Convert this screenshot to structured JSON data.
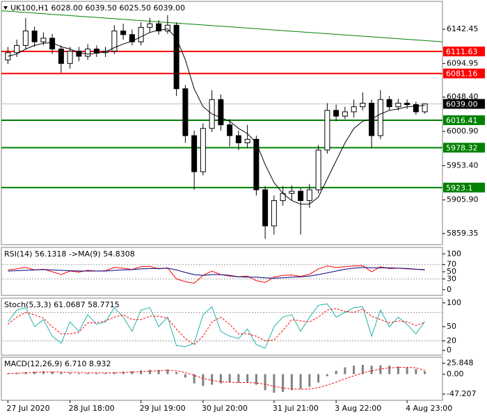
{
  "chart_data": [
    {
      "type": "candlestick",
      "title": "UK100,H1  6028.00 6039.50 6025.50 6039.00",
      "open": [
        6100,
        6110,
        6120,
        6140,
        6125,
        6130,
        6115,
        6095,
        6112,
        6105,
        6115,
        6110,
        6112,
        6140,
        6135,
        6125,
        6145,
        6150,
        6140,
        6148,
        6060,
        5995,
        5945,
        6005,
        6045,
        6010,
        5995,
        5985,
        5990,
        5920,
        5870,
        5905,
        5915,
        5918,
        5905,
        5920,
        5975,
        6030,
        6022,
        6028,
        6035,
        6040,
        5995,
        6045,
        6035,
        6040,
        6038,
        6028
      ],
      "high": [
        6118,
        6128,
        6158,
        6146,
        6138,
        6136,
        6120,
        6118,
        6118,
        6122,
        6120,
        6118,
        6148,
        6150,
        6142,
        6152,
        6158,
        6155,
        6162,
        6152,
        6065,
        6002,
        6012,
        6058,
        6052,
        6018,
        6002,
        6010,
        5995,
        5925,
        5912,
        5925,
        5926,
        5922,
        5928,
        5982,
        6040,
        6038,
        6035,
        6045,
        6055,
        6045,
        6058,
        6050,
        6046,
        6045,
        6042,
        6039.5
      ],
      "low": [
        6094,
        6104,
        6114,
        6118,
        6120,
        6108,
        6082,
        6088,
        6098,
        6100,
        6104,
        6104,
        6108,
        6128,
        6120,
        6120,
        6138,
        6135,
        6136,
        6050,
        5985,
        5920,
        5940,
        6000,
        6002,
        5980,
        5975,
        5978,
        5912,
        5852,
        5858,
        5898,
        5905,
        5858,
        5895,
        5915,
        5970,
        6015,
        6018,
        6020,
        6030,
        5978,
        5990,
        6030,
        6030,
        6032,
        6024,
        6025.5
      ],
      "close": [
        6110,
        6120,
        6140,
        6125,
        6130,
        6115,
        6095,
        6112,
        6105,
        6115,
        6110,
        6112,
        6140,
        6135,
        6125,
        6145,
        6150,
        6140,
        6148,
        6060,
        5995,
        5945,
        6005,
        6045,
        6010,
        5995,
        5985,
        5990,
        5920,
        5870,
        5905,
        5915,
        5918,
        5905,
        5920,
        5975,
        6030,
        6022,
        6028,
        6035,
        6040,
        5995,
        6045,
        6035,
        6040,
        6038,
        6028,
        6039
      ],
      "ma": {
        "color": "#000000",
        "values": [
          6105,
          6108,
          6115,
          6120,
          6123,
          6124,
          6118,
          6115,
          6110,
          6108,
          6109,
          6111,
          6117,
          6122,
          6126,
          6132,
          6138,
          6141,
          6143,
          6130,
          6100,
          6060,
          6035,
          6025,
          6020,
          6015,
          6005,
          5998,
          5985,
          5955,
          5930,
          5915,
          5905,
          5900,
          5900,
          5910,
          5935,
          5960,
          5985,
          6005,
          6015,
          6018,
          6025,
          6030,
          6032,
          6035,
          6036,
          6037
        ]
      },
      "trendline": {
        "color": "#008000",
        "values": [
          6168,
          6125
        ]
      },
      "levels": [
        6111.63,
        6081.16,
        6016.41,
        5978.32,
        5923.1
      ],
      "level_colors": [
        "#ff0000",
        "#ff0000",
        "#008000",
        "#008000",
        "#008000"
      ],
      "current": {
        "value": 6039,
        "label": "6039.00"
      },
      "ylim": [
        5844,
        6181
      ],
      "yticks": [
        6142.45,
        6094.95,
        {
          "value": 6048.4,
          "label": "6048.40"
        },
        {
          "value": 6000.9,
          "label": "6000.90"
        },
        {
          "value": 5953.4,
          "label": "5953.40"
        },
        {
          "value": 5905.9,
          "label": "5905.90"
        },
        5859.35
      ]
    },
    {
      "type": "line",
      "title": "RSI(14) 56.1318 ->MA(9) 54.8308",
      "series": [
        {
          "color": "#ff0000",
          "values": [
            55,
            58,
            62,
            55,
            57,
            50,
            42,
            52,
            49,
            54,
            52,
            53,
            62,
            60,
            56,
            64,
            65,
            58,
            61,
            30,
            22,
            18,
            40,
            52,
            42,
            38,
            36,
            38,
            25,
            20,
            35,
            40,
            41,
            37,
            43,
            58,
            66,
            62,
            64,
            66,
            67,
            50,
            64,
            59,
            60,
            58,
            57,
            56
          ]
        },
        {
          "color": "#000080",
          "values": [
            52,
            53,
            54,
            55,
            56,
            55,
            54,
            53,
            52,
            52,
            52,
            52,
            54,
            55,
            56,
            58,
            59,
            59,
            60,
            55,
            48,
            42,
            40,
            42,
            42,
            40,
            36,
            35,
            35,
            33,
            32,
            33,
            35,
            36,
            38,
            42,
            47,
            52,
            57,
            60,
            62,
            61,
            61,
            61,
            60,
            59,
            57,
            55
          ]
        }
      ],
      "levels": [
        70,
        30
      ],
      "ylim": [
        -16,
        118
      ],
      "yticks": [
        100,
        70,
        50,
        30,
        0
      ]
    },
    {
      "type": "line",
      "title": "Stoch(5,3,3) 61.0687 58.7715",
      "series": [
        {
          "color": "#20b2aa",
          "values": [
            60,
            85,
            90,
            50,
            65,
            30,
            15,
            60,
            40,
            75,
            55,
            60,
            90,
            70,
            40,
            85,
            90,
            50,
            70,
            10,
            8,
            15,
            75,
            92,
            40,
            30,
            25,
            45,
            12,
            5,
            50,
            70,
            75,
            40,
            70,
            95,
            98,
            70,
            80,
            90,
            92,
            30,
            85,
            50,
            70,
            55,
            35,
            61
          ]
        },
        {
          "color": "#ff0000",
          "dash": true,
          "values": [
            55,
            70,
            80,
            75,
            68,
            50,
            35,
            35,
            38,
            58,
            58,
            62,
            70,
            75,
            65,
            65,
            72,
            72,
            68,
            45,
            25,
            12,
            30,
            60,
            70,
            55,
            35,
            35,
            30,
            20,
            22,
            42,
            65,
            62,
            60,
            70,
            85,
            88,
            82,
            80,
            87,
            72,
            65,
            58,
            62,
            60,
            52,
            59
          ]
        }
      ],
      "levels": [
        80,
        20
      ],
      "ylim": [
        -10,
        110
      ],
      "yticks": [
        100,
        50,
        20,
        0
      ]
    },
    {
      "type": "bar",
      "title": "MACD(12,26,9) 6.710 8.932",
      "categories": [
        "27 Jul 2020",
        null,
        null,
        null,
        null,
        null,
        null,
        "28 Jul 18:00",
        null,
        null,
        null,
        null,
        null,
        null,
        null,
        "29 Jul 19:00",
        null,
        null,
        null,
        null,
        null,
        null,
        "30 Jul 20:00",
        null,
        null,
        null,
        null,
        null,
        null,
        null,
        "31 Jul 21:00",
        null,
        null,
        null,
        null,
        null,
        null,
        "3 Aug 22:00",
        null,
        null,
        null,
        null,
        null,
        null,
        null,
        "4 Aug 23:00",
        null,
        null
      ],
      "values": [
        2,
        3,
        5,
        6,
        7,
        6,
        4,
        3,
        2,
        2,
        2,
        2,
        4,
        6,
        7,
        9,
        10,
        10,
        11,
        5,
        -8,
        -22,
        -28,
        -25,
        -22,
        -20,
        -20,
        -19,
        -25,
        -38,
        -44,
        -42,
        -38,
        -35,
        -30,
        -20,
        -5,
        8,
        16,
        20,
        22,
        20,
        21,
        20,
        18,
        16,
        12,
        6.71
      ],
      "color": "#808080",
      "series": [
        {
          "color": "#ff0000",
          "dash": true,
          "values": [
            1,
            2,
            3,
            4,
            5,
            5,
            5,
            4,
            4,
            3,
            3,
            3,
            3,
            4,
            5,
            6,
            7,
            8,
            9,
            8,
            4,
            -3,
            -10,
            -15,
            -18,
            -19,
            -20,
            -20,
            -21,
            -24,
            -29,
            -33,
            -35,
            -36,
            -35,
            -32,
            -26,
            -19,
            -11,
            -4,
            3,
            8,
            12,
            15,
            16,
            16,
            15,
            8.932
          ]
        }
      ],
      "ylim": [
        -62,
        40
      ],
      "yticks": [
        25.848,
        {
          "value": 0,
          "label": "0.00"
        },
        -47.207
      ]
    }
  ]
}
